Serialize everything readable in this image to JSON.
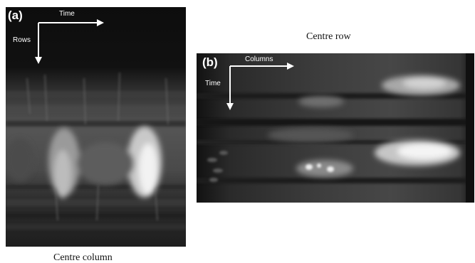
{
  "panel_a": {
    "letter": "(a)",
    "axis_horizontal": "Time",
    "axis_vertical": "Rows",
    "caption": "Centre column"
  },
  "panel_b": {
    "letter": "(b)",
    "axis_horizontal": "Columns",
    "axis_vertical": "Time",
    "caption": "Centre row"
  },
  "colors": {
    "panel_background": "#161616",
    "annotation": "#ffffff",
    "caption_text": "#111111"
  }
}
